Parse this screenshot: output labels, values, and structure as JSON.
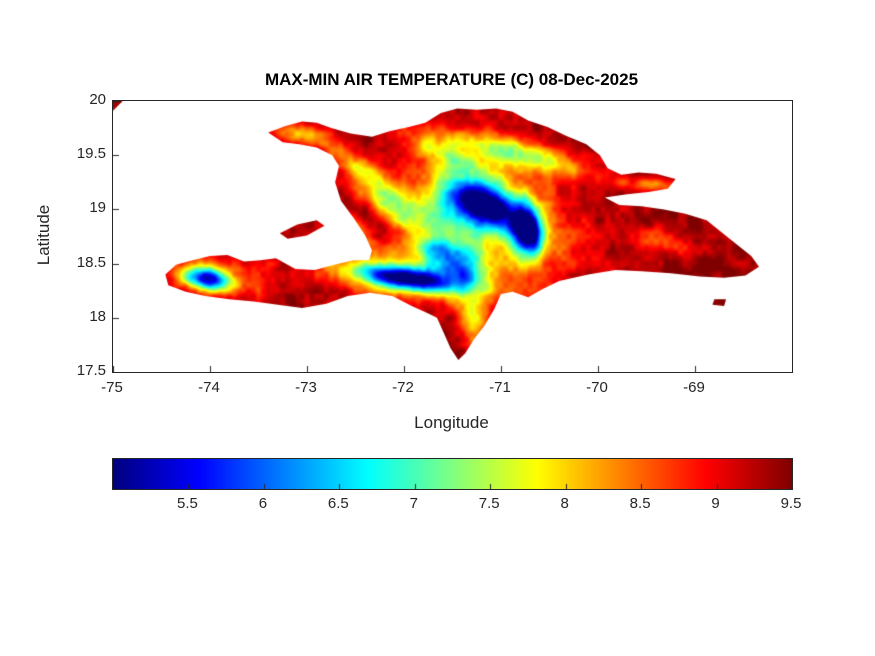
{
  "chart_data": {
    "type": "heatmap",
    "title": "MAX-MIN AIR TEMPERATURE (C) 08-Dec-2025",
    "xlabel": "Longitude",
    "ylabel": "Latitude",
    "region": "Hispaniola",
    "xlim": [
      -75,
      -68
    ],
    "ylim": [
      17.5,
      20
    ],
    "xticks": [
      -75,
      -74,
      -73,
      -72,
      -71,
      -70,
      -69
    ],
    "yticks": [
      20,
      19.5,
      19,
      18.5,
      18,
      17.5
    ],
    "colormap": "jet",
    "clim": [
      5.0,
      9.5
    ],
    "colorbar_ticks": [
      5.5,
      6,
      6.5,
      7,
      7.5,
      8,
      8.5,
      9,
      9.5
    ],
    "base_value": 9.45,
    "noise_amp": 0.8,
    "polygons": {
      "hispaniola": [
        [
          -73.4,
          19.71
        ],
        [
          -73.22,
          19.77
        ],
        [
          -73.05,
          19.81
        ],
        [
          -72.9,
          19.8
        ],
        [
          -72.75,
          19.75
        ],
        [
          -72.55,
          19.7
        ],
        [
          -72.33,
          19.67
        ],
        [
          -72.15,
          19.72
        ],
        [
          -71.95,
          19.76
        ],
        [
          -71.78,
          19.8
        ],
        [
          -71.62,
          19.89
        ],
        [
          -71.45,
          19.93
        ],
        [
          -71.25,
          19.92
        ],
        [
          -71.05,
          19.93
        ],
        [
          -70.88,
          19.9
        ],
        [
          -70.72,
          19.82
        ],
        [
          -70.52,
          19.76
        ],
        [
          -70.33,
          19.68
        ],
        [
          -70.12,
          19.6
        ],
        [
          -69.98,
          19.5
        ],
        [
          -69.9,
          19.38
        ],
        [
          -69.76,
          19.32
        ],
        [
          -69.58,
          19.34
        ],
        [
          -69.4,
          19.33
        ],
        [
          -69.2,
          19.28
        ],
        [
          -69.28,
          19.19
        ],
        [
          -69.48,
          19.16
        ],
        [
          -69.7,
          19.14
        ],
        [
          -69.93,
          19.11
        ],
        [
          -69.78,
          19.04
        ],
        [
          -69.55,
          19.03
        ],
        [
          -69.32,
          19.0
        ],
        [
          -69.1,
          18.96
        ],
        [
          -68.88,
          18.9
        ],
        [
          -68.63,
          18.72
        ],
        [
          -68.42,
          18.57
        ],
        [
          -68.34,
          18.47
        ],
        [
          -68.48,
          18.39
        ],
        [
          -68.7,
          18.37
        ],
        [
          -68.95,
          18.38
        ],
        [
          -69.25,
          18.41
        ],
        [
          -69.55,
          18.43
        ],
        [
          -69.82,
          18.44
        ],
        [
          -70.1,
          18.4
        ],
        [
          -70.4,
          18.34
        ],
        [
          -70.58,
          18.26
        ],
        [
          -70.72,
          18.19
        ],
        [
          -70.88,
          18.24
        ],
        [
          -71.0,
          18.22
        ],
        [
          -71.07,
          18.08
        ],
        [
          -71.17,
          17.93
        ],
        [
          -71.28,
          17.8
        ],
        [
          -71.37,
          17.67
        ],
        [
          -71.44,
          17.61
        ],
        [
          -71.52,
          17.72
        ],
        [
          -71.6,
          17.88
        ],
        [
          -71.66,
          18.0
        ],
        [
          -71.75,
          18.04
        ],
        [
          -71.92,
          18.11
        ],
        [
          -72.12,
          18.2
        ],
        [
          -72.35,
          18.23
        ],
        [
          -72.58,
          18.2
        ],
        [
          -72.8,
          18.13
        ],
        [
          -73.05,
          18.09
        ],
        [
          -73.3,
          18.12
        ],
        [
          -73.55,
          18.15
        ],
        [
          -73.8,
          18.17
        ],
        [
          -74.05,
          18.2
        ],
        [
          -74.25,
          18.24
        ],
        [
          -74.43,
          18.3
        ],
        [
          -74.46,
          18.4
        ],
        [
          -74.35,
          18.49
        ],
        [
          -74.18,
          18.53
        ],
        [
          -74.0,
          18.57
        ],
        [
          -73.82,
          18.58
        ],
        [
          -73.65,
          18.52
        ],
        [
          -73.48,
          18.53
        ],
        [
          -73.32,
          18.55
        ],
        [
          -73.12,
          18.45
        ],
        [
          -72.92,
          18.44
        ],
        [
          -72.72,
          18.49
        ],
        [
          -72.52,
          18.53
        ],
        [
          -72.36,
          18.53
        ],
        [
          -72.33,
          18.62
        ],
        [
          -72.4,
          18.76
        ],
        [
          -72.52,
          18.92
        ],
        [
          -72.65,
          19.08
        ],
        [
          -72.71,
          19.25
        ],
        [
          -72.67,
          19.4
        ],
        [
          -72.74,
          19.5
        ],
        [
          -72.9,
          19.57
        ],
        [
          -73.08,
          19.6
        ],
        [
          -73.25,
          19.62
        ]
      ],
      "gonave": [
        [
          -73.28,
          18.78
        ],
        [
          -73.1,
          18.86
        ],
        [
          -72.9,
          18.9
        ],
        [
          -72.82,
          18.85
        ],
        [
          -73.0,
          18.76
        ],
        [
          -73.2,
          18.73
        ]
      ],
      "cuba_corner": [
        [
          -75.0,
          20.0
        ],
        [
          -74.9,
          20.0
        ],
        [
          -75.0,
          19.91
        ]
      ],
      "saona": [
        [
          -68.8,
          18.17
        ],
        [
          -68.68,
          18.17
        ],
        [
          -68.7,
          18.11
        ],
        [
          -68.82,
          18.12
        ]
      ]
    },
    "cold_spots": [
      {
        "lon": -71.17,
        "lat": 19.05,
        "amp": 4.0,
        "sx": 0.28,
        "sy": 0.13,
        "rot": -25
      },
      {
        "lon": -70.73,
        "lat": 18.8,
        "amp": 4.2,
        "sx": 0.1,
        "sy": 0.16,
        "rot": 10
      },
      {
        "lon": -71.05,
        "lat": 18.98,
        "amp": 1.5,
        "sx": 0.62,
        "sy": 0.38,
        "rot": -25
      },
      {
        "lon": -71.55,
        "lat": 18.92,
        "amp": 1.4,
        "sx": 0.3,
        "sy": 0.14,
        "rot": -30
      },
      {
        "lon": -71.95,
        "lat": 18.36,
        "amp": 3.7,
        "sx": 0.38,
        "sy": 0.075,
        "rot": -7
      },
      {
        "lon": -71.45,
        "lat": 18.45,
        "amp": 2.2,
        "sx": 0.22,
        "sy": 0.09,
        "rot": -15
      },
      {
        "lon": -72.0,
        "lat": 18.38,
        "amp": 1.2,
        "sx": 0.75,
        "sy": 0.18,
        "rot": -7
      },
      {
        "lon": -74.03,
        "lat": 18.36,
        "amp": 3.2,
        "sx": 0.16,
        "sy": 0.07,
        "rot": -8
      },
      {
        "lon": -73.95,
        "lat": 18.38,
        "amp": 1.1,
        "sx": 0.38,
        "sy": 0.13,
        "rot": -8
      },
      {
        "lon": -70.85,
        "lat": 19.52,
        "amp": 1.7,
        "sx": 0.55,
        "sy": 0.09,
        "rot": -12
      },
      {
        "lon": -71.55,
        "lat": 19.5,
        "amp": 1.3,
        "sx": 0.3,
        "sy": 0.07,
        "rot": -20
      },
      {
        "lon": -72.35,
        "lat": 19.3,
        "amp": 1.5,
        "sx": 0.4,
        "sy": 0.09,
        "rot": -35
      },
      {
        "lon": -72.15,
        "lat": 19.0,
        "amp": 1.3,
        "sx": 0.3,
        "sy": 0.08,
        "rot": -30
      },
      {
        "lon": -73.05,
        "lat": 19.68,
        "amp": 1.2,
        "sx": 0.22,
        "sy": 0.06,
        "rot": -10
      },
      {
        "lon": -69.45,
        "lat": 19.22,
        "amp": 1.0,
        "sx": 0.22,
        "sy": 0.05,
        "rot": -5
      },
      {
        "lon": -69.35,
        "lat": 18.72,
        "amp": 0.9,
        "sx": 0.25,
        "sy": 0.08,
        "rot": -10
      },
      {
        "lon": -71.28,
        "lat": 17.95,
        "amp": 1.5,
        "sx": 0.1,
        "sy": 0.18,
        "rot": 15
      },
      {
        "lon": -71.6,
        "lat": 18.63,
        "amp": 1.7,
        "sx": 0.3,
        "sy": 0.08,
        "rot": -10
      },
      {
        "lon": -72.55,
        "lat": 18.85,
        "amp": 1.2,
        "sx": 0.22,
        "sy": 0.07,
        "rot": -40
      }
    ]
  }
}
